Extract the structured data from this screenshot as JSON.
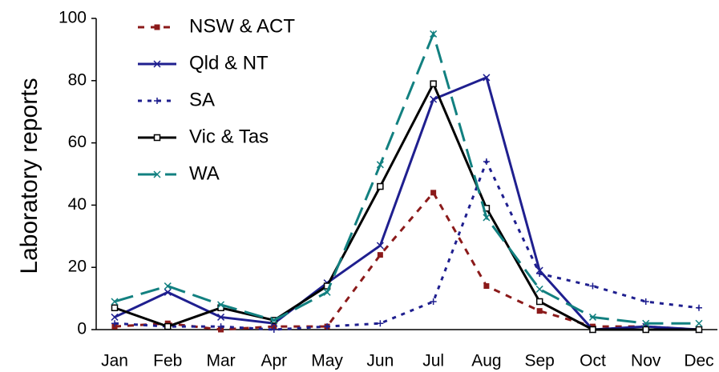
{
  "chart_data": {
    "type": "line",
    "y_label": "Laboratory reports",
    "categories": [
      "Jan",
      "Feb",
      "Mar",
      "Apr",
      "May",
      "Jun",
      "Jul",
      "Aug",
      "Sep",
      "Oct",
      "Nov",
      "Dec"
    ],
    "ylim": [
      0,
      100
    ],
    "yticks": [
      0,
      20,
      40,
      60,
      80,
      100
    ],
    "grid": false,
    "legend": "upper left",
    "series": [
      {
        "name": "NSW & ACT",
        "color": "#8b1a1a",
        "values": [
          1,
          2,
          0,
          1,
          1,
          24,
          44,
          14,
          6,
          1,
          1,
          0
        ]
      },
      {
        "name": "Qld & NT",
        "color": "#1f1f8f",
        "values": [
          4,
          12,
          4,
          2,
          15,
          27,
          74,
          81,
          19,
          0,
          1,
          0
        ]
      },
      {
        "name": "SA",
        "color": "#1f1f8f",
        "values": [
          2,
          1,
          1,
          0,
          1,
          2,
          9,
          54,
          18,
          14,
          9,
          7
        ]
      },
      {
        "name": "Vic & Tas",
        "color": "#000000",
        "values": [
          7,
          1,
          7,
          3,
          14,
          46,
          79,
          39,
          9,
          0,
          0,
          0
        ]
      },
      {
        "name": "WA",
        "color": "#128080",
        "values": [
          9,
          14,
          8,
          3,
          12,
          53,
          95,
          36,
          13,
          4,
          2,
          2
        ]
      }
    ]
  }
}
